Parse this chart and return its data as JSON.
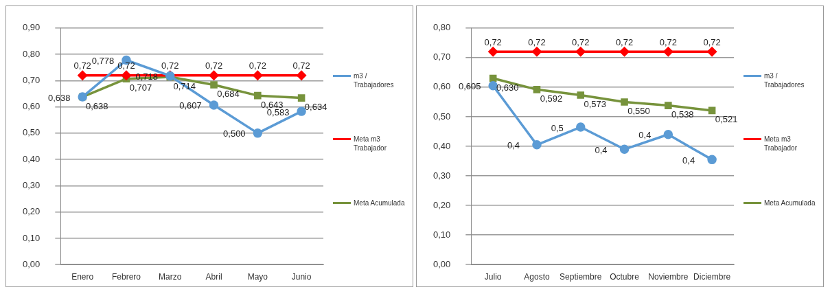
{
  "chart_data": [
    {
      "type": "line",
      "categories": [
        "Enero",
        "Febrero",
        "Marzo",
        "Abril",
        "Mayo",
        "Junio"
      ],
      "ylim": [
        0,
        0.9
      ],
      "yticks": [
        {
          "value": 0,
          "label": "0,00"
        },
        {
          "value": 0.1,
          "label": "0,10"
        },
        {
          "value": 0.2,
          "label": "0,20"
        },
        {
          "value": 0.3,
          "label": "0,30"
        },
        {
          "value": 0.4,
          "label": "0,40"
        },
        {
          "value": 0.5,
          "label": "0,50"
        },
        {
          "value": 0.6,
          "label": "0,60"
        },
        {
          "value": 0.7,
          "label": "0,70"
        },
        {
          "value": 0.8,
          "label": "0,80"
        },
        {
          "value": 0.9,
          "label": "0,90"
        }
      ],
      "grid": "y",
      "legend": "right",
      "series": [
        {
          "name": "m3 / Trabajadores",
          "color": "#5b9bd5",
          "marker": "circle",
          "values": [
            0.638,
            0.778,
            0.718,
            0.607,
            0.5,
            0.583
          ],
          "value_labels": [
            "0,638",
            "0,778",
            "0,718",
            "0,607",
            "0,500",
            "0,583"
          ]
        },
        {
          "name": "Meta m3 Trabajador",
          "color": "#ff0000",
          "marker": "diamond",
          "values": [
            0.72,
            0.72,
            0.72,
            0.72,
            0.72,
            0.72
          ],
          "value_labels": [
            "0,72",
            "0,72",
            "0,72",
            "0,72",
            "0,72",
            "0,72"
          ]
        },
        {
          "name": "Meta Acumulada",
          "color": "#77933c",
          "marker": "square",
          "values": [
            0.638,
            0.707,
            0.714,
            0.684,
            0.643,
            0.634
          ],
          "value_labels": [
            "0,638",
            "0,707",
            "0,714",
            "0,684",
            "0,643",
            "0,634"
          ]
        }
      ]
    },
    {
      "type": "line",
      "categories": [
        "Julio",
        "Agosto",
        "Septiembre",
        "Octubre",
        "Noviembre",
        "Diciembre"
      ],
      "ylim": [
        0,
        0.8
      ],
      "yticks": [
        {
          "value": 0,
          "label": "0,00"
        },
        {
          "value": 0.1,
          "label": "0,10"
        },
        {
          "value": 0.2,
          "label": "0,20"
        },
        {
          "value": 0.3,
          "label": "0,30"
        },
        {
          "value": 0.4,
          "label": "0,40"
        },
        {
          "value": 0.5,
          "label": "0,50"
        },
        {
          "value": 0.6,
          "label": "0,60"
        },
        {
          "value": 0.7,
          "label": "0,70"
        },
        {
          "value": 0.8,
          "label": "0,80"
        }
      ],
      "grid": "y",
      "legend": "right",
      "series": [
        {
          "name": "m3 / Trabajadores",
          "color": "#5b9bd5",
          "marker": "circle",
          "values": [
            0.605,
            0.405,
            0.465,
            0.39,
            0.44,
            0.355
          ],
          "value_labels": [
            "0,605",
            "0,4",
            "0,5",
            "0,4",
            "0,4",
            "0,4"
          ]
        },
        {
          "name": "Meta m3 Trabajador",
          "color": "#ff0000",
          "marker": "diamond",
          "values": [
            0.72,
            0.72,
            0.72,
            0.72,
            0.72,
            0.72
          ],
          "value_labels": [
            "0,72",
            "0,72",
            "0,72",
            "0,72",
            "0,72",
            "0,72"
          ]
        },
        {
          "name": "Meta Acumulada",
          "color": "#77933c",
          "marker": "square",
          "values": [
            0.63,
            0.592,
            0.573,
            0.55,
            0.538,
            0.521
          ],
          "value_labels": [
            "0,630",
            "0,592",
            "0,573",
            "0,550",
            "0,538",
            "0,521"
          ]
        }
      ]
    }
  ]
}
